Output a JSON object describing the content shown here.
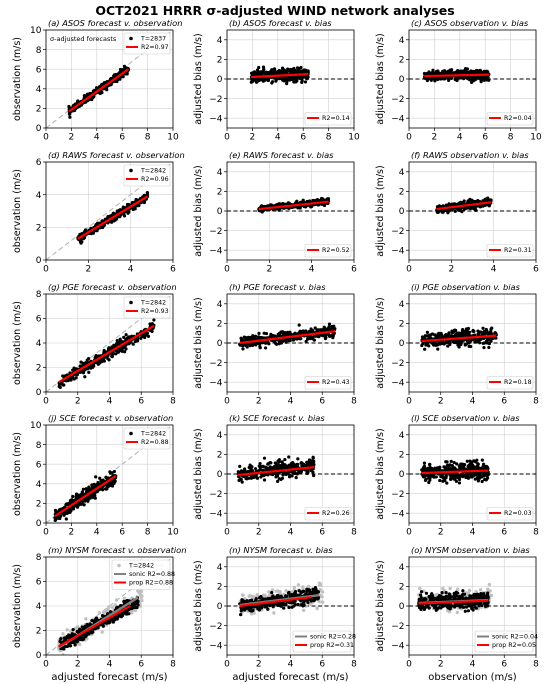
{
  "figure": {
    "title": "OCT2021 HRRR σ-adjusted WIND network analyses",
    "xlabel_left": "adjusted forecast (m/s)",
    "xlabel_middle": "adjusted forecast (m/s)",
    "xlabel_right": "observation (m/s)",
    "ylabel_left": "observation (m/s)",
    "ylabel_bias": "adjusted bias (m/s)"
  },
  "colors": {
    "points": "#000000",
    "fit_prop": "#ff0000",
    "fit_sonic": "#808080",
    "sonic_points": "#c0c0c0",
    "one_to_one": "#b0b0b0",
    "zero_line": "#000000",
    "grid": "#d0d0d0"
  },
  "chart_data": [
    {
      "id": "a",
      "type": "scatter",
      "title": "(a) ASOS forecast v. observation",
      "xlim": [
        0,
        10
      ],
      "ylim": [
        0,
        10
      ],
      "xticks": [
        0,
        2,
        4,
        6,
        8,
        10
      ],
      "yticks": [
        0,
        2,
        4,
        6,
        8,
        10
      ],
      "ylabel": "observation (m/s)",
      "annotation": "σ-adjusted forecasts",
      "one_to_one": true,
      "cloud": {
        "x": [
          1.8,
          6.5
        ],
        "intercept": 0.0,
        "slope": 0.93,
        "spread": 0.25
      },
      "series": [
        {
          "name": "T=2837",
          "kind": "points"
        },
        {
          "name": "R2=0.97",
          "kind": "fit",
          "x": [
            1.8,
            6.5
          ],
          "y": [
            1.7,
            6.0
          ]
        }
      ],
      "legend_position": "upper right"
    },
    {
      "id": "b",
      "type": "scatter",
      "title": "(b) ASOS forecast v. bias",
      "xlim": [
        0,
        10
      ],
      "ylim": [
        -5,
        5
      ],
      "xticks": [
        0,
        2,
        4,
        6,
        8,
        10
      ],
      "yticks": [
        -4,
        -2,
        0,
        2,
        4
      ],
      "ylabel": "adjusted bias (m/s)",
      "zero_line": true,
      "cloud": {
        "x": [
          1.9,
          6.4
        ],
        "intercept": 0.1,
        "slope": 0.06,
        "spread": 0.4
      },
      "series": [
        {
          "name": "R2=0.14",
          "kind": "fit",
          "x": [
            1.9,
            6.4
          ],
          "y": [
            0.2,
            0.5
          ]
        }
      ],
      "legend_position": "lower right"
    },
    {
      "id": "c",
      "type": "scatter",
      "title": "(c) ASOS observation v. bias",
      "xlim": [
        0,
        10
      ],
      "ylim": [
        -5,
        5
      ],
      "xticks": [
        0,
        2,
        4,
        6,
        8,
        10
      ],
      "yticks": [
        -4,
        -2,
        0,
        2,
        4
      ],
      "ylabel": "adjusted bias (m/s)",
      "zero_line": true,
      "cloud": {
        "x": [
          1.2,
          6.3
        ],
        "intercept": 0.3,
        "slope": 0.02,
        "spread": 0.35
      },
      "series": [
        {
          "name": "R2=0.04",
          "kind": "fit",
          "x": [
            1.2,
            6.3
          ],
          "y": [
            0.3,
            0.45
          ]
        }
      ],
      "legend_position": "lower right"
    },
    {
      "id": "d",
      "type": "scatter",
      "title": "(d) RAWS forecast v. observation",
      "xlim": [
        0,
        6
      ],
      "ylim": [
        0,
        6
      ],
      "xticks": [
        0,
        2,
        4,
        6
      ],
      "yticks": [
        0,
        2,
        4,
        6
      ],
      "ylabel": "observation (m/s)",
      "one_to_one": true,
      "cloud": {
        "x": [
          1.5,
          4.8
        ],
        "intercept": 0.1,
        "slope": 0.79,
        "spread": 0.15
      },
      "series": [
        {
          "name": "T=2842",
          "kind": "points"
        },
        {
          "name": "R2=0.96",
          "kind": "fit",
          "x": [
            1.5,
            4.8
          ],
          "y": [
            1.3,
            3.9
          ]
        }
      ],
      "legend_position": "upper right"
    },
    {
      "id": "e",
      "type": "scatter",
      "title": "(e) RAWS forecast v. bias",
      "xlim": [
        0,
        6
      ],
      "ylim": [
        -5,
        5
      ],
      "xticks": [
        0,
        2,
        4,
        6
      ],
      "yticks": [
        -4,
        -2,
        0,
        2,
        4
      ],
      "ylabel": "adjusted bias (m/s)",
      "zero_line": true,
      "cloud": {
        "x": [
          1.5,
          4.8
        ],
        "intercept": -0.1,
        "slope": 0.22,
        "spread": 0.2
      },
      "series": [
        {
          "name": "R2=0.52",
          "kind": "fit",
          "x": [
            1.5,
            4.8
          ],
          "y": [
            0.2,
            0.95
          ]
        }
      ],
      "legend_position": "lower right"
    },
    {
      "id": "f",
      "type": "scatter",
      "title": "(f) RAWS observation v. bias",
      "xlim": [
        0,
        6
      ],
      "ylim": [
        -5,
        5
      ],
      "xticks": [
        0,
        2,
        4,
        6
      ],
      "yticks": [
        -4,
        -2,
        0,
        2,
        4
      ],
      "ylabel": "adjusted bias (m/s)",
      "zero_line": true,
      "cloud": {
        "x": [
          1.3,
          3.9
        ],
        "intercept": -0.2,
        "slope": 0.28,
        "spread": 0.25
      },
      "series": [
        {
          "name": "R2=0.31",
          "kind": "fit",
          "x": [
            1.3,
            3.9
          ],
          "y": [
            0.2,
            0.9
          ]
        }
      ],
      "legend_position": "lower right"
    },
    {
      "id": "g",
      "type": "scatter",
      "title": "(g) PGE forecast v. observation",
      "xlim": [
        0,
        8
      ],
      "ylim": [
        0,
        8
      ],
      "xticks": [
        0,
        2,
        4,
        6,
        8
      ],
      "yticks": [
        0,
        2,
        4,
        6,
        8
      ],
      "ylabel": "observation (m/s)",
      "one_to_one": true,
      "cloud": {
        "x": [
          0.8,
          6.8
        ],
        "intercept": 0.1,
        "slope": 0.78,
        "spread": 0.3
      },
      "series": [
        {
          "name": "T=2842",
          "kind": "points"
        },
        {
          "name": "R2=0.93",
          "kind": "fit",
          "x": [
            0.8,
            6.8
          ],
          "y": [
            0.8,
            5.4
          ]
        }
      ],
      "legend_position": "upper right"
    },
    {
      "id": "h",
      "type": "scatter",
      "title": "(h) PGE forecast v. bias",
      "xlim": [
        0,
        8
      ],
      "ylim": [
        -5,
        5
      ],
      "xticks": [
        0,
        2,
        4,
        6,
        8
      ],
      "yticks": [
        -4,
        -2,
        0,
        2,
        4
      ],
      "ylabel": "adjusted bias (m/s)",
      "zero_line": true,
      "cloud": {
        "x": [
          0.8,
          6.8
        ],
        "intercept": -0.15,
        "slope": 0.2,
        "spread": 0.4
      },
      "series": [
        {
          "name": "R2=0.43",
          "kind": "fit",
          "x": [
            0.8,
            6.8
          ],
          "y": [
            0.0,
            1.2
          ]
        }
      ],
      "legend_position": "lower right"
    },
    {
      "id": "i",
      "type": "scatter",
      "title": "(i) PGE observation v. bias",
      "xlim": [
        0,
        8
      ],
      "ylim": [
        -5,
        5
      ],
      "xticks": [
        0,
        2,
        4,
        6,
        8
      ],
      "yticks": [
        -4,
        -2,
        0,
        2,
        4
      ],
      "ylabel": "adjusted bias (m/s)",
      "zero_line": true,
      "cloud": {
        "x": [
          0.8,
          5.5
        ],
        "intercept": 0.1,
        "slope": 0.12,
        "spread": 0.5
      },
      "series": [
        {
          "name": "R2=0.18",
          "kind": "fit",
          "x": [
            0.8,
            5.5
          ],
          "y": [
            0.2,
            0.75
          ]
        }
      ],
      "legend_position": "lower right"
    },
    {
      "id": "j",
      "type": "scatter",
      "title": "(j) SCE forecast v. observation",
      "xlim": [
        0,
        10
      ],
      "ylim": [
        0,
        10
      ],
      "xticks": [
        0,
        2,
        4,
        6,
        8,
        10
      ],
      "yticks": [
        0,
        2,
        4,
        6,
        8,
        10
      ],
      "ylabel": "observation (m/s)",
      "one_to_one": true,
      "cloud": {
        "x": [
          0.7,
          5.5
        ],
        "intercept": 0.1,
        "slope": 0.85,
        "spread": 0.45
      },
      "series": [
        {
          "name": "T=2842",
          "kind": "points"
        },
        {
          "name": "R2=0.88",
          "kind": "fit",
          "x": [
            0.7,
            5.5
          ],
          "y": [
            0.7,
            4.8
          ]
        }
      ],
      "legend_position": "upper right"
    },
    {
      "id": "k",
      "type": "scatter",
      "title": "(k) SCE forecast v. bias",
      "xlim": [
        0,
        8
      ],
      "ylim": [
        -5,
        5
      ],
      "xticks": [
        0,
        2,
        4,
        6,
        8
      ],
      "yticks": [
        -4,
        -2,
        0,
        2,
        4
      ],
      "ylabel": "adjusted bias (m/s)",
      "zero_line": true,
      "cloud": {
        "x": [
          0.7,
          5.5
        ],
        "intercept": -0.15,
        "slope": 0.17,
        "spread": 0.55
      },
      "series": [
        {
          "name": "R2=0.26",
          "kind": "fit",
          "x": [
            0.7,
            5.5
          ],
          "y": [
            -0.1,
            0.7
          ]
        }
      ],
      "legend_position": "lower right"
    },
    {
      "id": "l",
      "type": "scatter",
      "title": "(l) SCE observation v. bias",
      "xlim": [
        0,
        8
      ],
      "ylim": [
        -5,
        5
      ],
      "xticks": [
        0,
        2,
        4,
        6,
        8
      ],
      "yticks": [
        -4,
        -2,
        0,
        2,
        4
      ],
      "ylabel": "adjusted bias (m/s)",
      "zero_line": true,
      "cloud": {
        "x": [
          0.8,
          5.0
        ],
        "intercept": 0.1,
        "slope": 0.04,
        "spread": 0.55
      },
      "series": [
        {
          "name": "R2=0.03",
          "kind": "fit",
          "x": [
            0.8,
            5.0
          ],
          "y": [
            0.1,
            0.35
          ]
        }
      ],
      "legend_position": "lower right"
    },
    {
      "id": "m",
      "type": "scatter",
      "title": "(m) NYSM forecast v. observation",
      "xlim": [
        0,
        8
      ],
      "ylim": [
        0,
        8
      ],
      "xticks": [
        0,
        2,
        4,
        6,
        8
      ],
      "yticks": [
        0,
        2,
        4,
        6,
        8
      ],
      "ylabel": "observation (m/s)",
      "xlabel": "adjusted forecast (m/s)",
      "one_to_one": true,
      "cloud": {
        "x": [
          0.8,
          5.8
        ],
        "intercept": 0.05,
        "slope": 0.75,
        "spread": 0.35
      },
      "series": [
        {
          "name": "T=2842",
          "kind": "sonic_points"
        },
        {
          "name": "sonic R2=0.88",
          "kind": "fit_sonic",
          "x": [
            0.8,
            5.8
          ],
          "y": [
            0.6,
            4.7
          ]
        },
        {
          "name": "prop R2=0.88",
          "kind": "fit",
          "x": [
            0.8,
            5.3
          ],
          "y": [
            0.7,
            4.0
          ]
        }
      ],
      "legend_position": "upper right"
    },
    {
      "id": "n",
      "type": "scatter",
      "title": "(n) NYSM forecast v. bias",
      "xlim": [
        0,
        8
      ],
      "ylim": [
        -5,
        5
      ],
      "xticks": [
        0,
        2,
        4,
        6,
        8
      ],
      "yticks": [
        -4,
        -2,
        0,
        2,
        4
      ],
      "ylabel": "adjusted bias (m/s)",
      "xlabel": "adjusted forecast (m/s)",
      "zero_line": true,
      "cloud": {
        "x": [
          0.8,
          5.8
        ],
        "intercept": -0.2,
        "slope": 0.22,
        "spread": 0.45
      },
      "series": [
        {
          "name": "sonic R2=0.28",
          "kind": "fit_sonic",
          "x": [
            0.8,
            5.8
          ],
          "y": [
            0.1,
            1.1
          ]
        },
        {
          "name": "prop R2=0.31",
          "kind": "fit",
          "x": [
            0.8,
            5.3
          ],
          "y": [
            0.0,
            0.9
          ]
        }
      ],
      "legend_position": "lower right"
    },
    {
      "id": "o",
      "type": "scatter",
      "title": "(o) NYSM observation v. bias",
      "xlim": [
        0,
        8
      ],
      "ylim": [
        -5,
        5
      ],
      "xticks": [
        0,
        2,
        4,
        6,
        8
      ],
      "yticks": [
        -4,
        -2,
        0,
        2,
        4
      ],
      "ylabel": "adjusted bias (m/s)",
      "xlabel": "observation (m/s)",
      "zero_line": true,
      "cloud": {
        "x": [
          0.6,
          5.0
        ],
        "intercept": 0.3,
        "slope": 0.06,
        "spread": 0.5
      },
      "series": [
        {
          "name": "sonic R2=0.04",
          "kind": "fit_sonic",
          "x": [
            0.6,
            5.0
          ],
          "y": [
            0.3,
            0.6
          ]
        },
        {
          "name": "prop R2=0.05",
          "kind": "fit",
          "x": [
            0.6,
            5.0
          ],
          "y": [
            0.25,
            0.55
          ]
        }
      ],
      "legend_position": "lower right"
    }
  ]
}
